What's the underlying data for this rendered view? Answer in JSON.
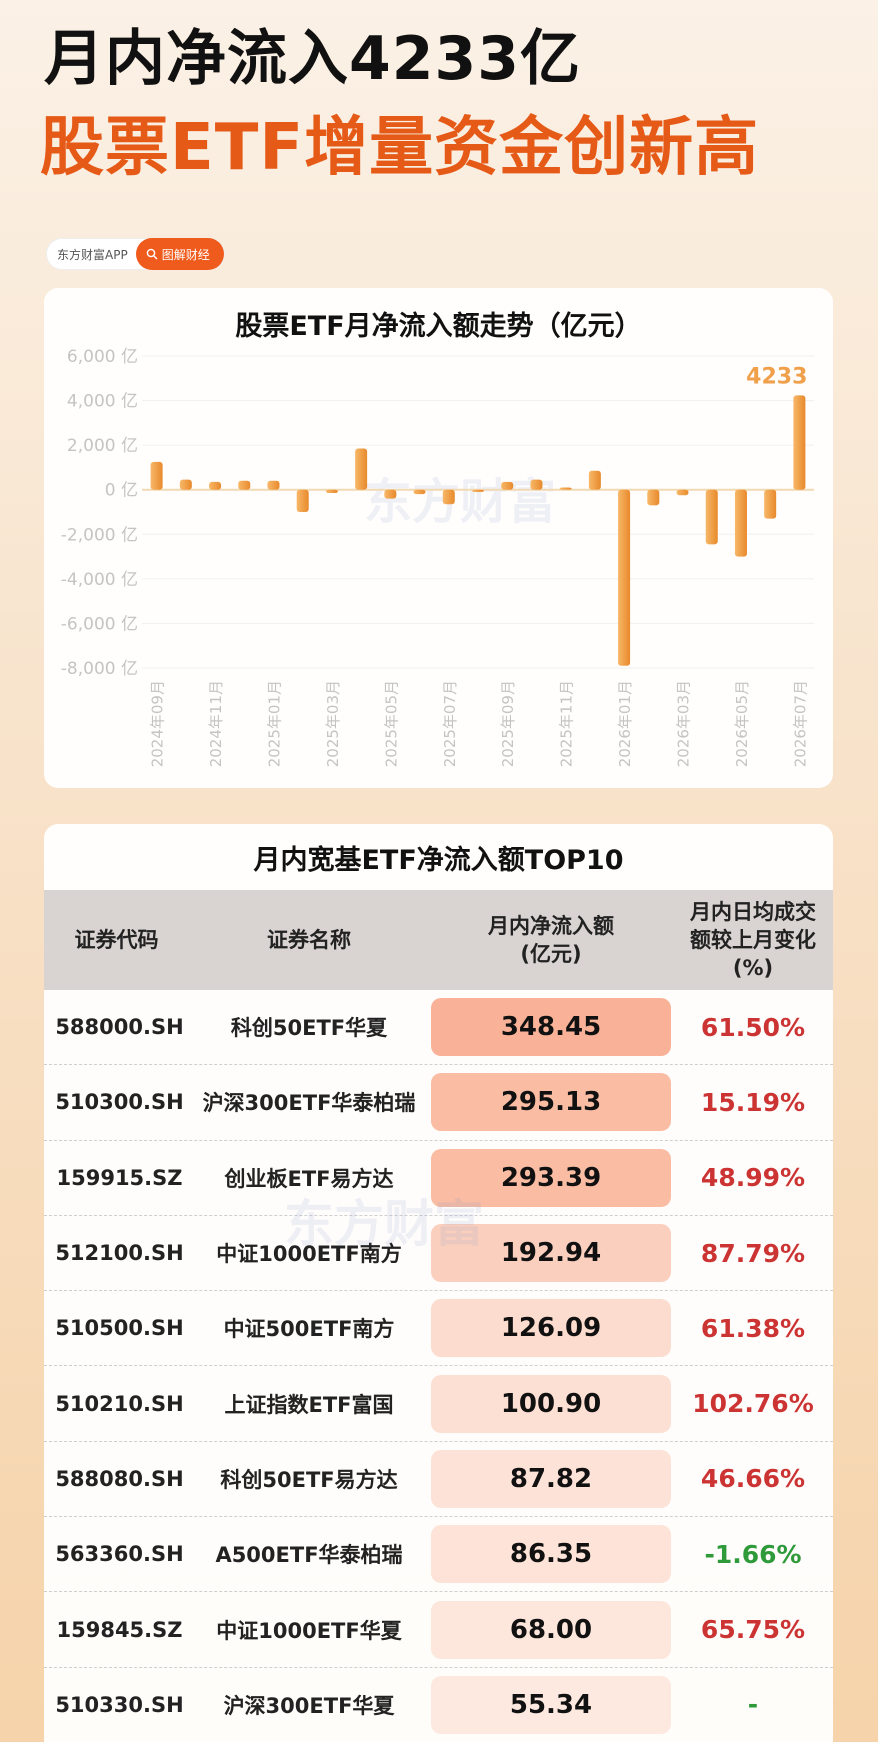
{
  "header": {
    "title_line1": "月内净流入4233亿",
    "title_line2": "股票ETF增量资金创新高"
  },
  "brand": {
    "app_name": "东方财富APP",
    "tag": "图解财经",
    "watermark": "东方财富"
  },
  "colors": {
    "accent": "#ef5b1d",
    "bar": "#f0a04b",
    "positive": "#cc3333",
    "negative": "#2e9a3a"
  },
  "chart_data": {
    "type": "bar",
    "title": "股票ETF月净流入额走势（亿元）",
    "ylim": [
      -8000,
      6000
    ],
    "yticks": [
      6000,
      4000,
      2000,
      0,
      -2000,
      -4000,
      -6000,
      -8000
    ],
    "ytick_labels": [
      "6,000 亿",
      "4,000 亿",
      "2,000 亿",
      "0 亿",
      "-2,000 亿",
      "-4,000 亿",
      "-6,000 亿",
      "-8,000 亿"
    ],
    "grid": true,
    "categories": [
      "2024年09月",
      "2024年10月",
      "2024年11月",
      "2024年12月",
      "2025年01月",
      "2025年02月",
      "2025年03月",
      "2025年04月",
      "2025年05月",
      "2025年06月",
      "2025年07月",
      "2025年08月",
      "2025年09月",
      "2025年10月",
      "2025年11月",
      "2025年12月",
      "2026年01月",
      "2026年02月",
      "2026年03月",
      "2026年04月",
      "2026年05月",
      "2026年06月",
      "2026年07月"
    ],
    "xtick_labels": [
      "2024年09月",
      "",
      "2024年11月",
      "",
      "2025年01月",
      "",
      "2025年03月",
      "",
      "2025年05月",
      "",
      "2025年07月",
      "",
      "2025年09月",
      "",
      "2025年11月",
      "",
      "2026年01月",
      "",
      "2026年03月",
      "",
      "2026年05月",
      "",
      "2026年07月"
    ],
    "values": [
      1250,
      450,
      350,
      400,
      400,
      -1000,
      -150,
      1850,
      -400,
      -200,
      -650,
      -100,
      350,
      450,
      100,
      850,
      -7900,
      -700,
      -250,
      -2450,
      -3000,
      -1300,
      4233
    ],
    "data_labels": [
      {
        "index": 22,
        "text": "4233"
      }
    ]
  },
  "table": {
    "title": "月内宽基ETF净流入额TOP10",
    "headers": [
      {
        "lines": [
          "证券代码"
        ]
      },
      {
        "lines": [
          "证券名称"
        ]
      },
      {
        "lines": [
          "月内净流入额",
          "(亿元)"
        ]
      },
      {
        "lines": [
          "月内日均成交",
          "额较上月变化",
          "(%)"
        ]
      }
    ],
    "rows": [
      {
        "code": "588000.SH",
        "name": "科创50ETF华夏",
        "flow": "348.45",
        "change": "61.50%"
      },
      {
        "code": "510300.SH",
        "name": "沪深300ETF华泰柏瑞",
        "flow": "295.13",
        "change": "15.19%"
      },
      {
        "code": "159915.SZ",
        "name": "创业板ETF易方达",
        "flow": "293.39",
        "change": "48.99%"
      },
      {
        "code": "512100.SH",
        "name": "中证1000ETF南方",
        "flow": "192.94",
        "change": "87.79%"
      },
      {
        "code": "510500.SH",
        "name": "中证500ETF南方",
        "flow": "126.09",
        "change": "61.38%"
      },
      {
        "code": "510210.SH",
        "name": "上证指数ETF富国",
        "flow": "100.90",
        "change": "102.76%"
      },
      {
        "code": "588080.SH",
        "name": "科创50ETF易方达",
        "flow": "87.82",
        "change": "46.66%"
      },
      {
        "code": "563360.SH",
        "name": "A500ETF华泰柏瑞",
        "flow": "86.35",
        "change": "-1.66%"
      },
      {
        "code": "159845.SZ",
        "name": "中证1000ETF华夏",
        "flow": "68.00",
        "change": "65.75%"
      },
      {
        "code": "510330.SH",
        "name": "沪深300ETF华夏",
        "flow": "55.34",
        "change": "-"
      }
    ]
  }
}
